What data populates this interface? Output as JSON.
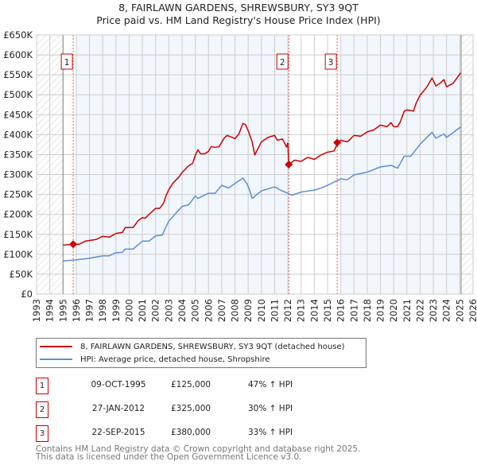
{
  "chart_data": {
    "type": "line",
    "title": "8, FAIRLAWN GARDENS, SHREWSBURY, SY3 9QT",
    "subtitle": "Price paid vs. HM Land Registry's House Price Index (HPI)",
    "xlim": [
      1993,
      2026
    ],
    "ylim": [
      0,
      650000
    ],
    "x_ticks": [
      1993,
      1994,
      1995,
      1996,
      1997,
      1998,
      1999,
      2000,
      2001,
      2002,
      2003,
      2004,
      2005,
      2006,
      2007,
      2008,
      2009,
      2010,
      2011,
      2012,
      2013,
      2014,
      2015,
      2016,
      2017,
      2018,
      2019,
      2020,
      2021,
      2022,
      2023,
      2024,
      2025,
      2026
    ],
    "y_ticks": [
      0,
      50000,
      100000,
      150000,
      200000,
      250000,
      300000,
      350000,
      400000,
      450000,
      500000,
      550000,
      600000,
      650000
    ],
    "y_tick_labels": [
      "£0",
      "£50K",
      "£100K",
      "£150K",
      "£200K",
      "£250K",
      "£300K",
      "£350K",
      "£400K",
      "£450K",
      "£500K",
      "£550K",
      "£600K",
      "£650K"
    ],
    "grid": true,
    "data_range": [
      1995.0,
      2025.1
    ],
    "series": [
      {
        "name": "8, FAIRLAWN GARDENS, SHREWSBURY, SY3 9QT (detached house)",
        "color": "#cc0000",
        "x": [
          1995.0,
          1995.77,
          1996.2,
          1996.7,
          1997.5,
          1998,
          1998.5,
          1999,
          1999.5,
          1999.7,
          2000.3,
          2000.7,
          2001,
          2001.2,
          2001.5,
          2002,
          2002.3,
          2002.6,
          2002.8,
          2003,
          2003.3,
          2003.8,
          2004,
          2004.5,
          2004.8,
          2005,
          2005.2,
          2005.4,
          2005.7,
          2006,
          2006.2,
          2006.5,
          2006.8,
          2007.2,
          2007.4,
          2007.8,
          2008,
          2008.3,
          2008.6,
          2008.8,
          2009,
          2009.3,
          2009.5,
          2010,
          2010.5,
          2011,
          2011.2,
          2011.6,
          2011.9,
          2012.0,
          2012.07,
          2012.5,
          2013,
          2013.5,
          2014,
          2014.5,
          2015,
          2015.5,
          2015.77,
          2016,
          2016.5,
          2017,
          2017.5,
          2018,
          2018.5,
          2019,
          2019.5,
          2019.8,
          2020,
          2020.3,
          2020.5,
          2020.8,
          2021,
          2021.5,
          2021.7,
          2022,
          2022.5,
          2022.9,
          2023.2,
          2023.5,
          2023.8,
          2024,
          2024.5,
          2025,
          2025.05
        ],
        "y": [
          123000,
          125000,
          125000,
          133000,
          137000,
          145000,
          143000,
          152000,
          155000,
          167000,
          167000,
          185000,
          192000,
          190000,
          200000,
          215000,
          215000,
          228000,
          248000,
          262000,
          278000,
          295000,
          305000,
          322000,
          328000,
          348000,
          362000,
          352000,
          352000,
          358000,
          370000,
          368000,
          370000,
          392000,
          398000,
          393000,
          390000,
          402000,
          428000,
          425000,
          410000,
          382000,
          349000,
          382000,
          393000,
          398000,
          386000,
          389000,
          369000,
          379000,
          325000,
          336000,
          333000,
          343000,
          338000,
          349000,
          356000,
          359000,
          380000,
          386000,
          382000,
          398000,
          396000,
          407000,
          412000,
          424000,
          420000,
          430000,
          420000,
          420000,
          432000,
          459000,
          462000,
          459000,
          479000,
          499000,
          519000,
          542000,
          522000,
          529000,
          538000,
          520000,
          529000,
          552000,
          555000
        ]
      },
      {
        "name": "HPI: Average price, detached house, Shropshire",
        "color": "#5b8fd4",
        "x": [
          1995.0,
          1996,
          1997,
          1998,
          1998.5,
          1999,
          1999.5,
          1999.7,
          2000.3,
          2001,
          2001.5,
          2002,
          2002.5,
          2002.8,
          2003,
          2004,
          2004.5,
          2005,
          2005.2,
          2006,
          2006.5,
          2007,
          2007.5,
          2008.6,
          2008.9,
          2009.1,
          2009.3,
          2010,
          2011,
          2011.5,
          2012,
          2012.3,
          2013,
          2014,
          2014.5,
          2015,
          2015.5,
          2016,
          2016.5,
          2017,
          2018,
          2019,
          2019.8,
          2020.3,
          2020.8,
          2021.3,
          2022,
          2022.9,
          2023.2,
          2023.8,
          2024,
          2025.05
        ],
        "y": [
          83000,
          86000,
          90000,
          96000,
          96000,
          104000,
          105000,
          113000,
          113000,
          133000,
          133000,
          146000,
          148000,
          170000,
          183000,
          220000,
          224000,
          246000,
          240000,
          253000,
          253000,
          273000,
          266000,
          291000,
          277000,
          262000,
          240000,
          259000,
          269000,
          260000,
          253000,
          248000,
          256000,
          261000,
          266000,
          273000,
          281000,
          289000,
          287000,
          299000,
          306000,
          319000,
          323000,
          316000,
          346000,
          346000,
          376000,
          406000,
          391000,
          402000,
          393000,
          419000
        ]
      }
    ],
    "sales": [
      {
        "num": "1",
        "date": "09-OCT-1995",
        "x": 1995.77,
        "price_value": 125000,
        "price": "£125,000",
        "hpi": "47% ↑ HPI"
      },
      {
        "num": "2",
        "date": "27-JAN-2012",
        "x": 2012.07,
        "price_value": 325000,
        "price": "£325,000",
        "hpi": "30% ↑ HPI"
      },
      {
        "num": "3",
        "date": "22-SEP-2015",
        "x": 2015.73,
        "price_value": 380000,
        "price": "£380,000",
        "hpi": "33% ↑ HPI"
      }
    ],
    "legend_position": "bottom"
  },
  "footer": {
    "line1": "Contains HM Land Registry data © Crown copyright and database right 2025.",
    "line2": "This data is licensed under the Open Government Licence v3.0."
  }
}
